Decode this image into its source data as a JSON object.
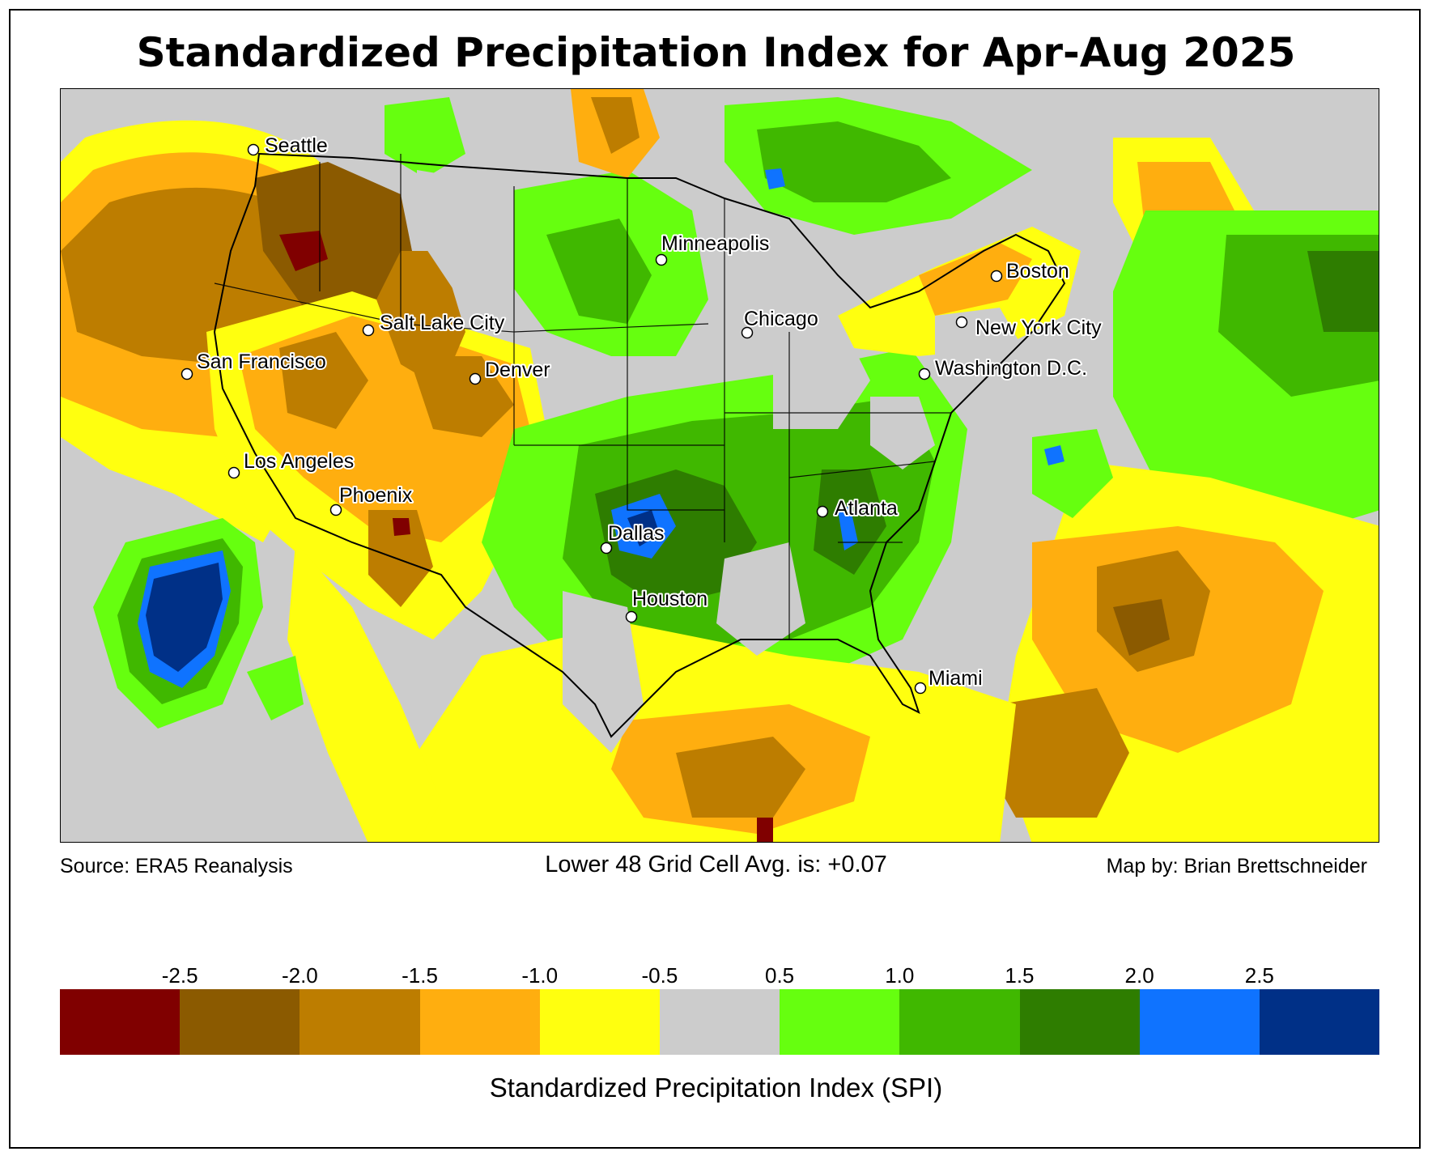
{
  "title": "Standardized Precipitation Index for Apr-Aug 2025",
  "footer": {
    "source": "Source: ERA5 Reanalysis",
    "average": "Lower 48 Grid Cell Avg. is: +0.07",
    "credit": "Map by: Brian Brettschneider"
  },
  "legend": {
    "title": "Standardized Precipitation Index (SPI)",
    "ticks": [
      "-2.5",
      "-2.0",
      "-1.5",
      "-1.0",
      "-0.5",
      "0.5",
      "1.0",
      "1.5",
      "2.0",
      "2.5"
    ],
    "colors": [
      "#800000",
      "#8b5a00",
      "#bd7d00",
      "#ffae0f",
      "#ffff0f",
      "#cccccc",
      "#66ff0f",
      "#40b800",
      "#2e7d00",
      "#0f73ff",
      "#003087"
    ]
  },
  "cities": [
    {
      "name": "Seattle"
    },
    {
      "name": "San Francisco"
    },
    {
      "name": "Los Angeles"
    },
    {
      "name": "Phoenix"
    },
    {
      "name": "Salt Lake City"
    },
    {
      "name": "Denver"
    },
    {
      "name": "Minneapolis"
    },
    {
      "name": "Chicago"
    },
    {
      "name": "Dallas"
    },
    {
      "name": "Houston"
    },
    {
      "name": "Atlanta"
    },
    {
      "name": "Miami"
    },
    {
      "name": "Washington D.C."
    },
    {
      "name": "New York City"
    },
    {
      "name": "Boston"
    }
  ]
}
